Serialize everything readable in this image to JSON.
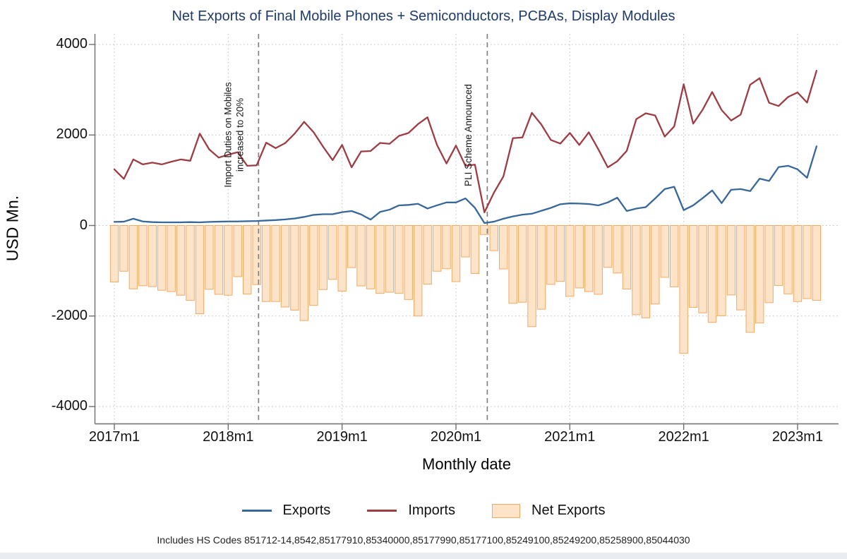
{
  "title": "Net Exports of Final Mobile Phones + Semiconductors, PCBAs, Display Modules",
  "footnote": "Includes HS Codes 851712-14,8542,85177910,85340000,85177990,85177100,85249100,85249200,85258900,85044030",
  "colors": {
    "title": "#1e3a68",
    "exports_line": "#38689a",
    "imports_line": "#9d3c43",
    "net_fill": "#fde4c8",
    "net_stroke": "#f2a963",
    "grid": "#c2c2c2",
    "axis": "#6e6e6e",
    "event_line": "#7d7d7d"
  },
  "chart_data": {
    "type": "line+bar",
    "title": "Net Exports of Final Mobile Phones + Semiconductors, PCBAs, Display Modules",
    "xlabel": "Monthly date",
    "ylabel": "USD Mn.",
    "ylim": [
      -4400,
      4200
    ],
    "y_ticks": [
      4000,
      2000,
      0,
      -2000,
      -4000
    ],
    "x_tick_labels": [
      "2017m1",
      "2018m1",
      "2019m1",
      "2020m1",
      "2021m1",
      "2022m1",
      "2023m1"
    ],
    "x_tick_month_indices": [
      0,
      12,
      24,
      36,
      48,
      60,
      72
    ],
    "grid": "dotted",
    "legend_position": "bottom",
    "months": [
      "2017m1",
      "2017m2",
      "2017m3",
      "2017m4",
      "2017m5",
      "2017m6",
      "2017m7",
      "2017m8",
      "2017m9",
      "2017m10",
      "2017m11",
      "2017m12",
      "2018m1",
      "2018m2",
      "2018m3",
      "2018m4",
      "2018m5",
      "2018m6",
      "2018m7",
      "2018m8",
      "2018m9",
      "2018m10",
      "2018m11",
      "2018m12",
      "2019m1",
      "2019m2",
      "2019m3",
      "2019m4",
      "2019m5",
      "2019m6",
      "2019m7",
      "2019m8",
      "2019m9",
      "2019m10",
      "2019m11",
      "2019m12",
      "2020m1",
      "2020m2",
      "2020m3",
      "2020m4",
      "2020m5",
      "2020m6",
      "2020m7",
      "2020m8",
      "2020m9",
      "2020m10",
      "2020m11",
      "2020m12",
      "2021m1",
      "2021m2",
      "2021m3",
      "2021m4",
      "2021m5",
      "2021m6",
      "2021m7",
      "2021m8",
      "2021m9",
      "2021m10",
      "2021m11",
      "2021m12",
      "2022m1",
      "2022m2",
      "2022m3",
      "2022m4",
      "2022m5",
      "2022m6",
      "2022m7",
      "2022m8",
      "2022m9",
      "2022m10",
      "2022m11",
      "2022m12",
      "2023m1",
      "2023m2",
      "2023m3"
    ],
    "series": [
      {
        "name": "Exports",
        "type": "line",
        "color": "#38689a",
        "values": [
          80,
          85,
          150,
          90,
          75,
          70,
          70,
          70,
          75,
          70,
          80,
          85,
          90,
          90,
          95,
          100,
          110,
          120,
          135,
          155,
          190,
          235,
          250,
          250,
          295,
          320,
          245,
          130,
          300,
          350,
          445,
          455,
          480,
          375,
          445,
          510,
          510,
          600,
          390,
          55,
          85,
          150,
          200,
          240,
          260,
          325,
          390,
          470,
          490,
          485,
          475,
          445,
          510,
          615,
          320,
          375,
          405,
          600,
          805,
          855,
          340,
          445,
          605,
          775,
          495,
          790,
          805,
          760,
          1035,
          985,
          1290,
          1320,
          1240,
          1055,
          1750
        ]
      },
      {
        "name": "Imports",
        "type": "line",
        "color": "#9d3c43",
        "values": [
          1240,
          1030,
          1460,
          1350,
          1390,
          1350,
          1410,
          1460,
          1430,
          2030,
          1680,
          1500,
          1565,
          1620,
          1320,
          1330,
          1830,
          1710,
          1820,
          2030,
          2290,
          2060,
          1740,
          1445,
          1780,
          1285,
          1635,
          1645,
          1825,
          1805,
          1980,
          2045,
          2240,
          2390,
          1780,
          1370,
          1765,
          1320,
          1345,
          290,
          725,
          1085,
          1930,
          1945,
          2490,
          2230,
          1890,
          1810,
          2045,
          1780,
          2060,
          1685,
          1285,
          1420,
          1650,
          2350,
          2480,
          2430,
          1965,
          2190,
          3120,
          2250,
          2560,
          2950,
          2550,
          2320,
          2450,
          3110,
          3255,
          2710,
          2640,
          2840,
          2940,
          2715,
          3420
        ]
      },
      {
        "name": "Net Exports",
        "type": "bar",
        "fill": "#fde4c8",
        "stroke": "#f2a963",
        "values": [
          -1250,
          -1010,
          -1400,
          -1330,
          -1350,
          -1430,
          -1460,
          -1540,
          -1655,
          -1950,
          -1410,
          -1520,
          -1540,
          -1130,
          -1515,
          -1305,
          -1680,
          -1680,
          -1800,
          -1870,
          -2100,
          -1765,
          -1415,
          -1190,
          -1450,
          -930,
          -1335,
          -1400,
          -1500,
          -1475,
          -1500,
          -1635,
          -2000,
          -1295,
          -1010,
          -955,
          -1240,
          -695,
          -1060,
          -200,
          -555,
          -960,
          -1720,
          -1695,
          -2235,
          -1850,
          -1300,
          -1235,
          -1565,
          -1380,
          -1460,
          -1520,
          -925,
          -1050,
          -1405,
          -1970,
          -2040,
          -1735,
          -1145,
          -1355,
          -2825,
          -1810,
          -1930,
          -2140,
          -1995,
          -1535,
          -1865,
          -2360,
          -2155,
          -1705,
          -1325,
          -1510,
          -1680,
          -1615,
          -1655
        ]
      }
    ],
    "annotations": [
      {
        "lines": [
          "Import Duties on Mobiles",
          "increased to 20%"
        ],
        "month": "2018m4",
        "month_index": 15.2
      },
      {
        "lines": [
          "PLI Scheme Announced"
        ],
        "month": "2020m4",
        "month_index": 39.3
      }
    ]
  },
  "legend": {
    "exports_label": "Exports",
    "imports_label": "Imports",
    "net_label": "Net Exports"
  }
}
